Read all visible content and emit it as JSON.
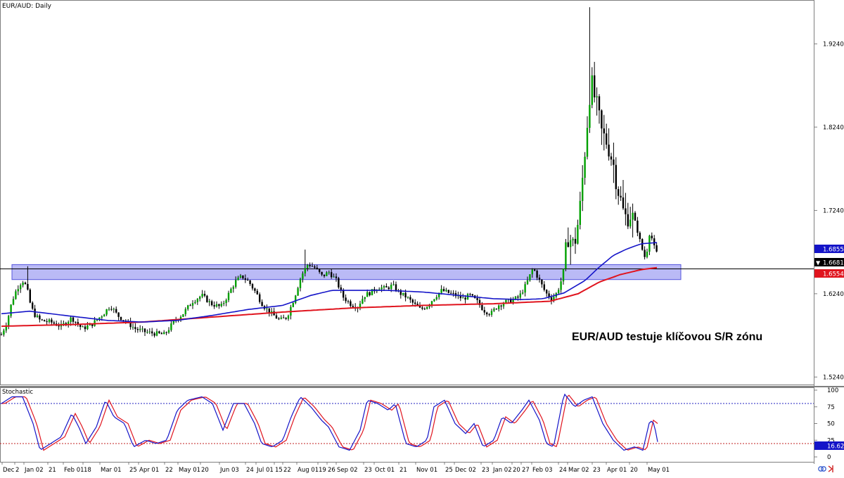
{
  "chart_data": {
    "type": "candlestick",
    "title": "EUR/AUD: Daily",
    "annotation": "EUR/AUD testuje klíčovou S/R zónu",
    "ylim": [
      1.515,
      1.975
    ],
    "y_ticks": [
      "1.92400",
      "1.82400",
      "1.72400",
      "1.62400",
      "1.52400"
    ],
    "price_labels": {
      "ma_blue": "1.68555",
      "current": "1.66810",
      "ma_red": "1.65546"
    },
    "sr_zone": [
      1.641,
      1.659
    ],
    "horizontal_line": 1.6538,
    "x_ticks": [
      "Dec",
      "2",
      "Jan 02",
      "21",
      "Feb 01",
      "18",
      "Mar 01",
      "25",
      "Apr 01",
      "22",
      "May 01",
      "20",
      "Jun 03",
      "24",
      "Jul 01",
      "15",
      "22",
      "Aug 01",
      "19",
      "26",
      "Sep 02",
      "23",
      "Oct 01",
      "21",
      "Nov 01",
      "25",
      "Dec 02",
      "23",
      "Jan 02",
      "20",
      "27",
      "Feb 03",
      "24",
      "Mar 02",
      "23",
      "Apr 01",
      "20",
      "May 01"
    ],
    "price_path": [
      [
        0,
        1.575
      ],
      [
        8,
        1.59
      ],
      [
        15,
        1.615
      ],
      [
        22,
        1.63
      ],
      [
        30,
        1.64
      ],
      [
        36,
        1.632
      ],
      [
        40,
        1.615
      ],
      [
        46,
        1.6
      ],
      [
        55,
        1.592
      ],
      [
        70,
        1.59
      ],
      [
        85,
        1.585
      ],
      [
        100,
        1.595
      ],
      [
        115,
        1.582
      ],
      [
        130,
        1.588
      ],
      [
        145,
        1.6
      ],
      [
        155,
        1.61
      ],
      [
        165,
        1.598
      ],
      [
        178,
        1.59
      ],
      [
        190,
        1.582
      ],
      [
        205,
        1.578
      ],
      [
        220,
        1.576
      ],
      [
        232,
        1.575
      ],
      [
        245,
        1.59
      ],
      [
        258,
        1.6
      ],
      [
        272,
        1.615
      ],
      [
        285,
        1.622
      ],
      [
        298,
        1.612
      ],
      [
        312,
        1.608
      ],
      [
        322,
        1.622
      ],
      [
        332,
        1.638
      ],
      [
        342,
        1.645
      ],
      [
        352,
        1.638
      ],
      [
        362,
        1.625
      ],
      [
        372,
        1.61
      ],
      [
        384,
        1.6
      ],
      [
        396,
        1.592
      ],
      [
        406,
        1.596
      ],
      [
        416,
        1.618
      ],
      [
        426,
        1.645
      ],
      [
        436,
        1.66
      ],
      [
        446,
        1.655
      ],
      [
        456,
        1.645
      ],
      [
        466,
        1.65
      ],
      [
        476,
        1.64
      ],
      [
        486,
        1.62
      ],
      [
        496,
        1.612
      ],
      [
        506,
        1.608
      ],
      [
        516,
        1.622
      ],
      [
        526,
        1.626
      ],
      [
        536,
        1.632
      ],
      [
        546,
        1.63
      ],
      [
        556,
        1.634
      ],
      [
        566,
        1.625
      ],
      [
        576,
        1.62
      ],
      [
        586,
        1.612
      ],
      [
        596,
        1.605
      ],
      [
        606,
        1.61
      ],
      [
        616,
        1.62
      ],
      [
        626,
        1.628
      ],
      [
        636,
        1.625
      ],
      [
        646,
        1.622
      ],
      [
        656,
        1.618
      ],
      [
        666,
        1.622
      ],
      [
        676,
        1.615
      ],
      [
        686,
        1.604
      ],
      [
        696,
        1.6
      ],
      [
        706,
        1.61
      ],
      [
        716,
        1.614
      ],
      [
        726,
        1.616
      ],
      [
        736,
        1.62
      ],
      [
        746,
        1.635
      ],
      [
        756,
        1.655
      ],
      [
        766,
        1.638
      ],
      [
        774,
        1.625
      ],
      [
        782,
        1.618
      ],
      [
        790,
        1.625
      ],
      [
        798,
        1.645
      ],
      [
        806,
        1.695
      ],
      [
        814,
        1.68
      ],
      [
        822,
        1.72
      ],
      [
        830,
        1.8
      ],
      [
        838,
        1.88
      ],
      [
        846,
        1.85
      ],
      [
        854,
        1.815
      ],
      [
        862,
        1.805
      ],
      [
        870,
        1.78
      ],
      [
        878,
        1.745
      ],
      [
        886,
        1.715
      ],
      [
        894,
        1.72
      ],
      [
        902,
        1.708
      ],
      [
        910,
        1.68
      ],
      [
        916,
        1.665
      ],
      [
        922,
        1.7
      ],
      [
        928,
        1.68
      ],
      [
        934,
        1.668
      ]
    ],
    "ma_blue_path": [
      [
        0,
        1.6
      ],
      [
        40,
        1.603
      ],
      [
        100,
        1.597
      ],
      [
        150,
        1.592
      ],
      [
        200,
        1.59
      ],
      [
        250,
        1.592
      ],
      [
        300,
        1.598
      ],
      [
        350,
        1.605
      ],
      [
        400,
        1.61
      ],
      [
        440,
        1.622
      ],
      [
        470,
        1.628
      ],
      [
        500,
        1.628
      ],
      [
        550,
        1.628
      ],
      [
        600,
        1.626
      ],
      [
        650,
        1.622
      ],
      [
        700,
        1.618
      ],
      [
        740,
        1.617
      ],
      [
        770,
        1.618
      ],
      [
        800,
        1.625
      ],
      [
        830,
        1.64
      ],
      [
        850,
        1.656
      ],
      [
        870,
        1.67
      ],
      [
        890,
        1.678
      ],
      [
        910,
        1.684
      ],
      [
        934,
        1.6855
      ]
    ],
    "ma_red_path": [
      [
        0,
        1.585
      ],
      [
        100,
        1.587
      ],
      [
        200,
        1.59
      ],
      [
        300,
        1.596
      ],
      [
        400,
        1.602
      ],
      [
        500,
        1.607
      ],
      [
        600,
        1.61
      ],
      [
        700,
        1.612
      ],
      [
        780,
        1.615
      ],
      [
        820,
        1.624
      ],
      [
        850,
        1.638
      ],
      [
        880,
        1.647
      ],
      [
        910,
        1.653
      ],
      [
        934,
        1.6555
      ]
    ],
    "stochastic": {
      "label": "Stochastic",
      "ylim": [
        0,
        100
      ],
      "y_ticks": [
        "100",
        "75",
        "50",
        "25",
        "0"
      ],
      "levels": [
        80,
        20
      ],
      "current_label": "16.62",
      "k_path": [
        [
          0,
          80
        ],
        [
          15,
          90
        ],
        [
          30,
          90
        ],
        [
          45,
          50
        ],
        [
          55,
          10
        ],
        [
          70,
          20
        ],
        [
          85,
          30
        ],
        [
          100,
          65
        ],
        [
          110,
          45
        ],
        [
          120,
          20
        ],
        [
          135,
          45
        ],
        [
          148,
          85
        ],
        [
          160,
          60
        ],
        [
          175,
          50
        ],
        [
          188,
          15
        ],
        [
          205,
          25
        ],
        [
          220,
          20
        ],
        [
          235,
          25
        ],
        [
          250,
          70
        ],
        [
          265,
          85
        ],
        [
          285,
          90
        ],
        [
          300,
          80
        ],
        [
          315,
          40
        ],
        [
          330,
          80
        ],
        [
          345,
          80
        ],
        [
          360,
          50
        ],
        [
          370,
          20
        ],
        [
          385,
          15
        ],
        [
          400,
          25
        ],
        [
          412,
          60
        ],
        [
          425,
          90
        ],
        [
          440,
          75
        ],
        [
          455,
          55
        ],
        [
          465,
          45
        ],
        [
          480,
          15
        ],
        [
          495,
          10
        ],
        [
          510,
          40
        ],
        [
          520,
          85
        ],
        [
          535,
          80
        ],
        [
          550,
          70
        ],
        [
          560,
          80
        ],
        [
          575,
          20
        ],
        [
          590,
          15
        ],
        [
          605,
          25
        ],
        [
          615,
          75
        ],
        [
          630,
          85
        ],
        [
          645,
          50
        ],
        [
          660,
          35
        ],
        [
          672,
          50
        ],
        [
          685,
          15
        ],
        [
          700,
          25
        ],
        [
          712,
          60
        ],
        [
          725,
          50
        ],
        [
          740,
          70
        ],
        [
          750,
          85
        ],
        [
          765,
          55
        ],
        [
          775,
          20
        ],
        [
          785,
          15
        ],
        [
          800,
          95
        ],
        [
          815,
          75
        ],
        [
          828,
          85
        ],
        [
          840,
          90
        ],
        [
          855,
          50
        ],
        [
          870,
          25
        ],
        [
          885,
          10
        ],
        [
          900,
          15
        ],
        [
          912,
          10
        ],
        [
          922,
          55
        ],
        [
          928,
          50
        ],
        [
          934,
          17
        ]
      ]
    }
  }
}
